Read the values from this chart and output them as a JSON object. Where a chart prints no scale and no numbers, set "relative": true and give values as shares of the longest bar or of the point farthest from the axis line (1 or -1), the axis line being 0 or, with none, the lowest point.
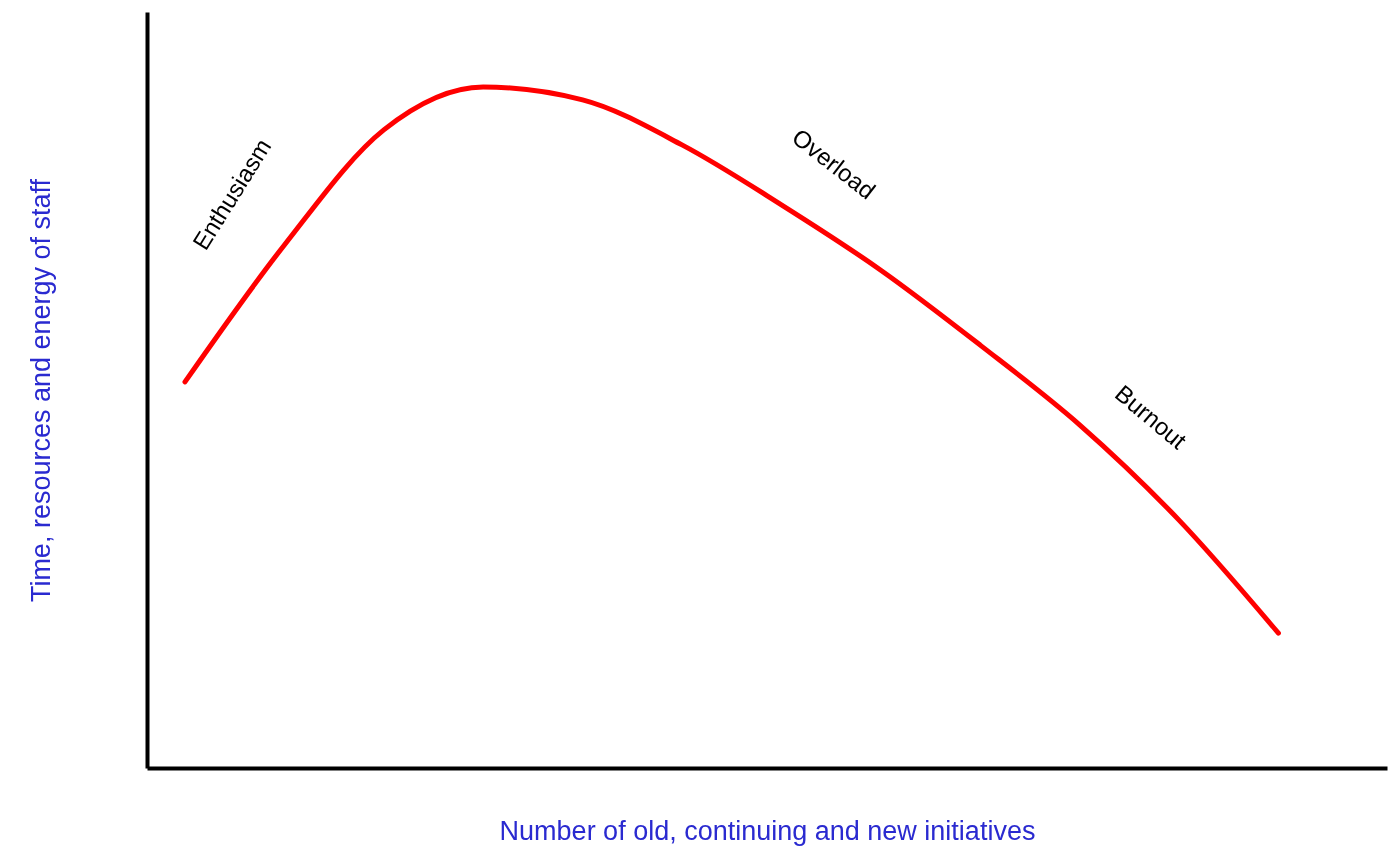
{
  "chart_data": {
    "type": "line",
    "relative": true,
    "xlabel": "Number of old, continuing and new initiatives",
    "ylabel": "Time, resources and energy of staff",
    "categories": [
      null,
      null,
      null,
      null,
      null,
      null,
      null,
      null,
      null,
      null,
      null,
      null
    ],
    "series": [
      {
        "color": "#ff0000",
        "values": [
          0.567,
          0.768,
          0.937,
          1.0,
          0.981,
          0.915,
          0.827,
          0.731,
          0.621,
          0.504,
          0.364,
          0.198
        ]
      }
    ],
    "annotations": [
      "Enthusiasm",
      "Overload",
      "Burnout"
    ],
    "grid": false,
    "marker": "none",
    "line_style": "solid"
  }
}
